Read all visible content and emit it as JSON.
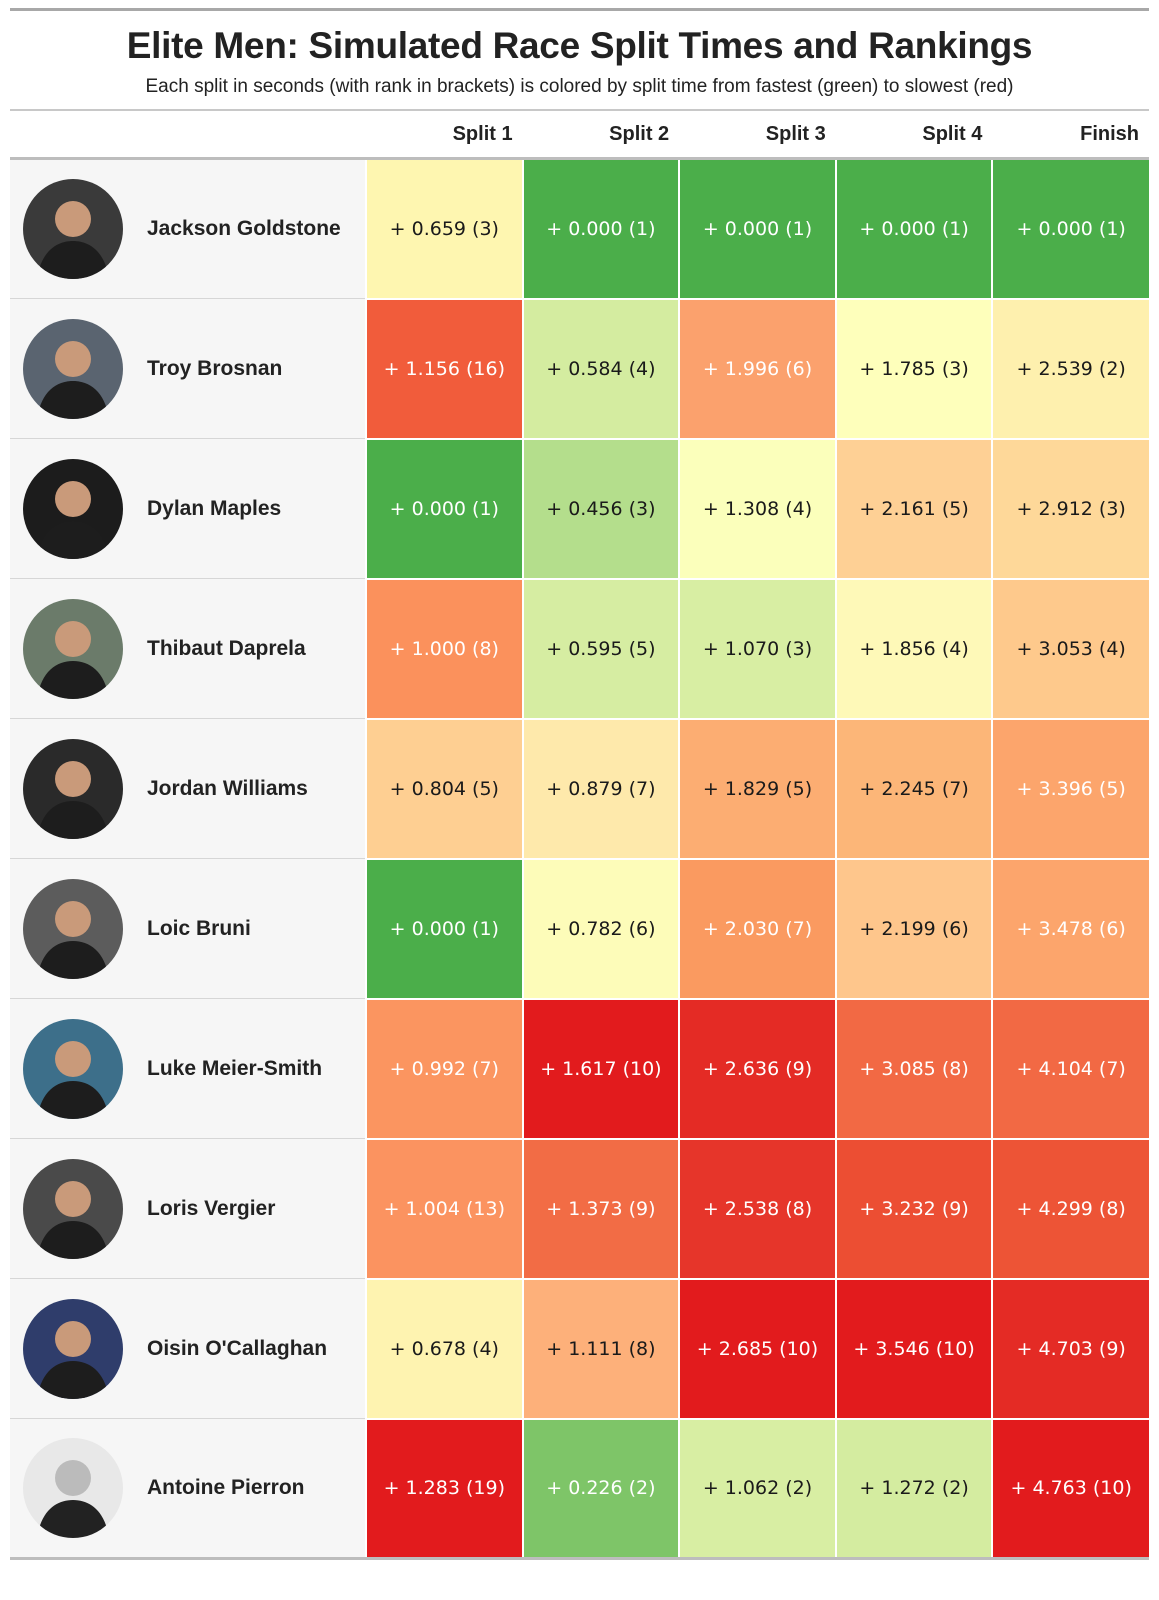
{
  "title": "Elite Men: Simulated Race Split Times and Rankings",
  "subtitle": "Each split in seconds (with rank in brackets) is colored by split time from fastest (green) to slowest (red)",
  "colors": {
    "fastest": "#4bae4a",
    "slowest": "#e21b1d",
    "text_dark": "#1a1a1a",
    "text_light": "#ffffff"
  },
  "chart_data": {
    "type": "table",
    "columns": [
      "Split 1",
      "Split 2",
      "Split 3",
      "Split 4",
      "Finish"
    ],
    "rows": [
      {
        "rider": "Jackson Goldstone",
        "avatar_icon": "rider-portrait-icon",
        "cells": [
          {
            "text": "+ 0.659 (3)",
            "value": 0.659,
            "rank": 3,
            "color": "#fef6b0"
          },
          {
            "text": "+ 0.000 (1)",
            "value": 0.0,
            "rank": 1,
            "color": "#4bae4a"
          },
          {
            "text": "+ 0.000 (1)",
            "value": 0.0,
            "rank": 1,
            "color": "#4bae4a"
          },
          {
            "text": "+ 0.000 (1)",
            "value": 0.0,
            "rank": 1,
            "color": "#4bae4a"
          },
          {
            "text": "+ 0.000 (1)",
            "value": 0.0,
            "rank": 1,
            "color": "#4bae4a"
          }
        ]
      },
      {
        "rider": "Troy Brosnan",
        "avatar_icon": "rider-portrait-icon",
        "cells": [
          {
            "text": "+ 1.156 (16)",
            "value": 1.156,
            "rank": 16,
            "color": "#f15c3b"
          },
          {
            "text": "+ 0.584 (4)",
            "value": 0.584,
            "rank": 4,
            "color": "#d4eca0"
          },
          {
            "text": "+ 1.996 (6)",
            "value": 1.996,
            "rank": 6,
            "color": "#fba16d"
          },
          {
            "text": "+ 1.785 (3)",
            "value": 1.785,
            "rank": 3,
            "color": "#feffbb"
          },
          {
            "text": "+ 2.539 (2)",
            "value": 2.539,
            "rank": 2,
            "color": "#fef0ae"
          }
        ]
      },
      {
        "rider": "Dylan Maples",
        "avatar_icon": "rider-portrait-icon",
        "cells": [
          {
            "text": "+ 0.000 (1)",
            "value": 0.0,
            "rank": 1,
            "color": "#4bae4a"
          },
          {
            "text": "+ 0.456 (3)",
            "value": 0.456,
            "rank": 3,
            "color": "#b4de8c"
          },
          {
            "text": "+ 1.308 (4)",
            "value": 1.308,
            "rank": 4,
            "color": "#fbffbb"
          },
          {
            "text": "+ 2.161 (5)",
            "value": 2.161,
            "rank": 5,
            "color": "#fed095"
          },
          {
            "text": "+ 2.912 (3)",
            "value": 2.912,
            "rank": 3,
            "color": "#fed899"
          }
        ]
      },
      {
        "rider": "Thibaut Daprela",
        "avatar_icon": "rider-portrait-icon",
        "cells": [
          {
            "text": "+ 1.000 (8)",
            "value": 1.0,
            "rank": 8,
            "color": "#fb915c"
          },
          {
            "text": "+ 0.595 (5)",
            "value": 0.595,
            "rank": 5,
            "color": "#d6eda2"
          },
          {
            "text": "+ 1.070 (3)",
            "value": 1.07,
            "rank": 3,
            "color": "#d8eea3"
          },
          {
            "text": "+ 1.856 (4)",
            "value": 1.856,
            "rank": 4,
            "color": "#fef9b8"
          },
          {
            "text": "+ 3.053 (4)",
            "value": 3.053,
            "rank": 4,
            "color": "#fec98c"
          }
        ]
      },
      {
        "rider": "Jordan Williams",
        "avatar_icon": "rider-portrait-icon",
        "cells": [
          {
            "text": "+ 0.804 (5)",
            "value": 0.804,
            "rank": 5,
            "color": "#fecf92"
          },
          {
            "text": "+ 0.879 (7)",
            "value": 0.879,
            "rank": 7,
            "color": "#fee9ab"
          },
          {
            "text": "+ 1.829 (5)",
            "value": 1.829,
            "rank": 5,
            "color": "#fcad72"
          },
          {
            "text": "+ 2.245 (7)",
            "value": 2.245,
            "rank": 7,
            "color": "#fcb678"
          },
          {
            "text": "+ 3.396 (5)",
            "value": 3.396,
            "rank": 5,
            "color": "#fca56c"
          }
        ]
      },
      {
        "rider": "Loic Bruni",
        "avatar_icon": "rider-portrait-icon",
        "cells": [
          {
            "text": "+ 0.000 (1)",
            "value": 0.0,
            "rank": 1,
            "color": "#4bae4a"
          },
          {
            "text": "+ 0.782 (6)",
            "value": 0.782,
            "rank": 6,
            "color": "#fdfcb9"
          },
          {
            "text": "+ 2.030 (7)",
            "value": 2.03,
            "rank": 7,
            "color": "#fa9a60"
          },
          {
            "text": "+ 2.199 (6)",
            "value": 2.199,
            "rank": 6,
            "color": "#fec68c"
          },
          {
            "text": "+ 3.478 (6)",
            "value": 3.478,
            "rank": 6,
            "color": "#fca56c"
          }
        ]
      },
      {
        "rider": "Luke Meier-Smith",
        "avatar_icon": "rider-portrait-icon",
        "cells": [
          {
            "text": "+ 0.992 (7)",
            "value": 0.992,
            "rank": 7,
            "color": "#fb9560"
          },
          {
            "text": "+ 1.617 (10)",
            "value": 1.617,
            "rank": 10,
            "color": "#e21b1d"
          },
          {
            "text": "+ 2.636 (9)",
            "value": 2.636,
            "rank": 9,
            "color": "#e42b25"
          },
          {
            "text": "+ 3.085 (8)",
            "value": 3.085,
            "rank": 8,
            "color": "#f26944"
          },
          {
            "text": "+ 4.104 (7)",
            "value": 4.104,
            "rank": 7,
            "color": "#f26944"
          }
        ]
      },
      {
        "rider": "Loris Vergier",
        "avatar_icon": "rider-portrait-icon",
        "cells": [
          {
            "text": "+ 1.004 (13)",
            "value": 1.004,
            "rank": 13,
            "color": "#fb9360"
          },
          {
            "text": "+ 1.373 (9)",
            "value": 1.373,
            "rank": 9,
            "color": "#f26c45"
          },
          {
            "text": "+ 2.538 (8)",
            "value": 2.538,
            "rank": 8,
            "color": "#e6352a"
          },
          {
            "text": "+ 3.232 (9)",
            "value": 3.232,
            "rank": 9,
            "color": "#ec4e33"
          },
          {
            "text": "+ 4.299 (8)",
            "value": 4.299,
            "rank": 8,
            "color": "#ed5436"
          }
        ]
      },
      {
        "rider": "Oisin O'Callaghan",
        "avatar_icon": "rider-portrait-icon",
        "cells": [
          {
            "text": "+ 0.678 (4)",
            "value": 0.678,
            "rank": 4,
            "color": "#fef3b0"
          },
          {
            "text": "+ 1.111 (8)",
            "value": 1.111,
            "rank": 8,
            "color": "#fdb07a"
          },
          {
            "text": "+ 2.685 (10)",
            "value": 2.685,
            "rank": 10,
            "color": "#e21b1d"
          },
          {
            "text": "+ 3.546 (10)",
            "value": 3.546,
            "rank": 10,
            "color": "#e21b1d"
          },
          {
            "text": "+ 4.703 (9)",
            "value": 4.703,
            "rank": 9,
            "color": "#e42b25"
          }
        ]
      },
      {
        "rider": "Antoine Pierron",
        "avatar_icon": "rider-portrait-icon",
        "cells": [
          {
            "text": "+ 1.283 (19)",
            "value": 1.283,
            "rank": 19,
            "color": "#e21b1d"
          },
          {
            "text": "+ 0.226 (2)",
            "value": 0.226,
            "rank": 2,
            "color": "#7ec568"
          },
          {
            "text": "+ 1.062 (2)",
            "value": 1.062,
            "rank": 2,
            "color": "#d8eea3"
          },
          {
            "text": "+ 1.272 (2)",
            "value": 1.272,
            "rank": 2,
            "color": "#d4eca0"
          },
          {
            "text": "+ 4.763 (10)",
            "value": 4.763,
            "rank": 10,
            "color": "#e21b1d"
          }
        ]
      }
    ]
  }
}
